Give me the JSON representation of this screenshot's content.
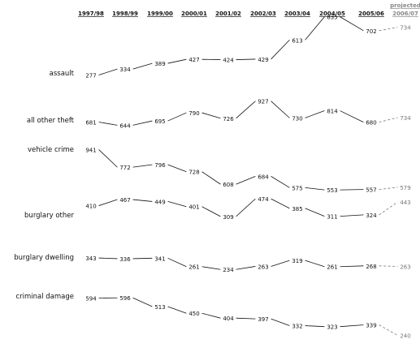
{
  "chart_data": {
    "type": "line",
    "header_note": "projected",
    "categories": [
      "1997/98",
      "1998/99",
      "1999/00",
      "2000/01",
      "2001/02",
      "2002/03",
      "2003/04",
      "2004/05",
      "2005/06",
      "2006/07"
    ],
    "projected_from_index": 9,
    "series": [
      {
        "name": "assault",
        "values": [
          277,
          334,
          389,
          427,
          424,
          429,
          613,
          835,
          702,
          734
        ]
      },
      {
        "name": "all other theft",
        "values": [
          681,
          644,
          695,
          790,
          726,
          927,
          730,
          814,
          680,
          734
        ]
      },
      {
        "name": "vehicle crime",
        "values": [
          941,
          772,
          796,
          728,
          608,
          684,
          575,
          553,
          557,
          579
        ]
      },
      {
        "name": "burglary other",
        "values": [
          410,
          467,
          449,
          401,
          309,
          474,
          385,
          311,
          324,
          443
        ]
      },
      {
        "name": "burglary dwelling",
        "values": [
          343,
          336,
          341,
          261,
          234,
          263,
          319,
          261,
          268,
          263
        ]
      },
      {
        "name": "criminal damage",
        "values": [
          594,
          596,
          513,
          450,
          404,
          397,
          332,
          323,
          339,
          240
        ]
      }
    ]
  }
}
